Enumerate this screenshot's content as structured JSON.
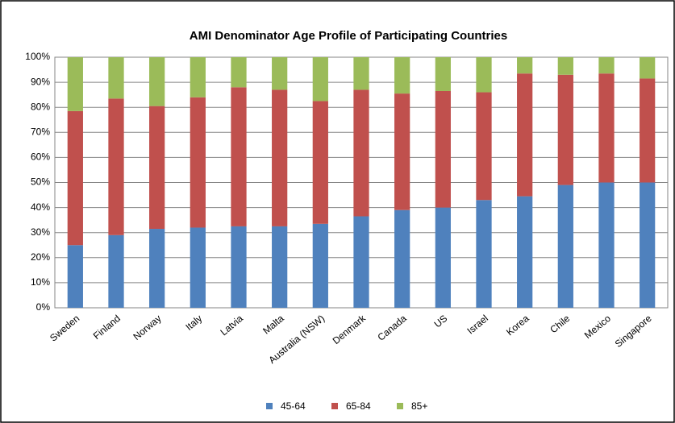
{
  "chart_data": {
    "type": "stacked_bar",
    "title": "AMI Denominator Age Profile of Participating Countries",
    "categories": [
      "Sweden",
      "Finland",
      "Norway",
      "Italy",
      "Latvia",
      "Malta",
      "Australia (NSW)",
      "Denmark",
      "Canada",
      "US",
      "Israel",
      "Korea",
      "Chile",
      "Mexico",
      "Singapore"
    ],
    "series": [
      {
        "name": "45-64",
        "color": "#4f81bd",
        "values": [
          25,
          29,
          31.5,
          32,
          32.5,
          32.5,
          33.5,
          36.5,
          39,
          40,
          43,
          44.5,
          49,
          50,
          50
        ]
      },
      {
        "name": "65-84",
        "color": "#c0504d",
        "values": [
          53.5,
          54.5,
          49,
          52,
          55.5,
          54.5,
          49,
          50.5,
          46.5,
          46.5,
          43,
          49,
          44,
          43.5,
          41.5
        ]
      },
      {
        "name": "85+",
        "color": "#9bbb59",
        "values": [
          21.5,
          16.5,
          19.5,
          16,
          12,
          13,
          17.5,
          13,
          14.5,
          13.5,
          14,
          6.5,
          7,
          6.5,
          8.5
        ]
      }
    ],
    "ylim": [
      0,
      100
    ],
    "yticks": [
      {
        "value": 0,
        "label": "0%"
      },
      {
        "value": 10,
        "label": "10%"
      },
      {
        "value": 20,
        "label": "20%"
      },
      {
        "value": 30,
        "label": "30%"
      },
      {
        "value": 40,
        "label": "40%"
      },
      {
        "value": 50,
        "label": "50%"
      },
      {
        "value": 60,
        "label": "60%"
      },
      {
        "value": 70,
        "label": "70%"
      },
      {
        "value": 80,
        "label": "80%"
      },
      {
        "value": 90,
        "label": "90%"
      },
      {
        "value": 100,
        "label": "100%"
      }
    ],
    "grid": true,
    "legend": "bottom"
  }
}
